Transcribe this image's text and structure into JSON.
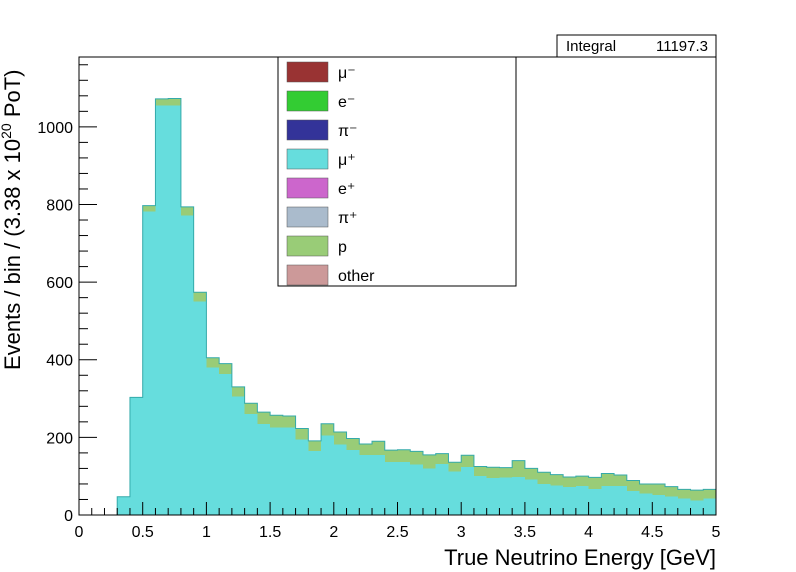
{
  "chart_data": {
    "type": "bar",
    "stacked": true,
    "xlabel": "True Neutrino Energy [GeV]",
    "ylabel": "Events / bin / (3.38 x 10^20 PoT)",
    "ylabel_parts": {
      "main": "Events / bin / (3.38 x 10",
      "exp": "20",
      "tail": " PoT)"
    },
    "xlim": [
      0,
      5
    ],
    "ylim": [
      0,
      1180
    ],
    "x_ticks": [
      0,
      0.5,
      1,
      1.5,
      2,
      2.5,
      3,
      3.5,
      4,
      4.5,
      5
    ],
    "x_tick_labels": [
      "0",
      "0.5",
      "1",
      "1.5",
      "2",
      "2.5",
      "3",
      "3.5",
      "4",
      "4.5",
      "5"
    ],
    "y_ticks": [
      0,
      200,
      400,
      600,
      800,
      1000
    ],
    "y_tick_labels": [
      "0",
      "200",
      "400",
      "600",
      "800",
      "1000"
    ],
    "bin_width": 0.1,
    "bin_lows": [
      0.0,
      0.1,
      0.2,
      0.3,
      0.4,
      0.5,
      0.6,
      0.7,
      0.8,
      0.9,
      1.0,
      1.1,
      1.2,
      1.3,
      1.4,
      1.5,
      1.6,
      1.7,
      1.8,
      1.9,
      2.0,
      2.1,
      2.2,
      2.3,
      2.4,
      2.5,
      2.6,
      2.7,
      2.8,
      2.9,
      3.0,
      3.1,
      3.2,
      3.3,
      3.4,
      3.5,
      3.6,
      3.7,
      3.8,
      3.9,
      4.0,
      4.1,
      4.2,
      4.3,
      4.4,
      4.5,
      4.6,
      4.7,
      4.8,
      4.9
    ],
    "series": [
      {
        "name": "μ⁻",
        "color": "#993333",
        "values": [
          0,
          0,
          0,
          0,
          0,
          0,
          0,
          0,
          0,
          0,
          0,
          0,
          0,
          0,
          0,
          0,
          0,
          0,
          0,
          0,
          0,
          0,
          0,
          0,
          0,
          0,
          0,
          0,
          0,
          0,
          0,
          0,
          0,
          0,
          0,
          0,
          0,
          0,
          0,
          0,
          0,
          0,
          0,
          0,
          0,
          0,
          0,
          0,
          0,
          0
        ]
      },
      {
        "name": "e⁻",
        "color": "#33cc33",
        "values": [
          0,
          0,
          0,
          0,
          0,
          0,
          0,
          0,
          0,
          0,
          0,
          0,
          0,
          0,
          0,
          0,
          0,
          0,
          0,
          0,
          0,
          0,
          0,
          0,
          0,
          0,
          0,
          0,
          0,
          0,
          0,
          0,
          0,
          0,
          0,
          0,
          0,
          0,
          0,
          0,
          0,
          0,
          0,
          0,
          0,
          0,
          0,
          0,
          0,
          0
        ]
      },
      {
        "name": "π⁻",
        "color": "#333399",
        "values": [
          0,
          0,
          0,
          0,
          0,
          0,
          0,
          0,
          0,
          0,
          0,
          0,
          0,
          0,
          0,
          0,
          0,
          0,
          0,
          0,
          0,
          0,
          0,
          0,
          0,
          0,
          0,
          0,
          0,
          0,
          0,
          0,
          0,
          0,
          0,
          0,
          0,
          0,
          0,
          0,
          0,
          0,
          0,
          0,
          0,
          0,
          0,
          0,
          0,
          0
        ]
      },
      {
        "name": "μ⁺",
        "color": "#66dddd",
        "values": [
          0,
          0,
          0,
          47,
          303,
          782,
          1055,
          1055,
          772,
          550,
          380,
          363,
          305,
          260,
          235,
          225,
          225,
          195,
          165,
          205,
          182,
          167,
          155,
          155,
          137,
          136,
          130,
          120,
          132,
          112,
          124,
          100,
          95,
          97,
          98,
          92,
          80,
          76,
          72,
          75,
          67,
          75,
          75,
          62,
          55,
          52,
          48,
          43,
          38,
          42
        ]
      },
      {
        "name": "e⁺",
        "color": "#cc66cc",
        "values": [
          0,
          0,
          0,
          0,
          0,
          0,
          0,
          0,
          0,
          0,
          0,
          0,
          0,
          0,
          0,
          0,
          0,
          0,
          0,
          0,
          0,
          0,
          0,
          0,
          0,
          0,
          0,
          0,
          0,
          0,
          0,
          0,
          0,
          0,
          0,
          0,
          0,
          0,
          0,
          0,
          0,
          0,
          0,
          0,
          0,
          0,
          0,
          0,
          0,
          0
        ]
      },
      {
        "name": "π⁺",
        "color": "#aabbcc",
        "values": [
          0,
          0,
          0,
          0,
          0,
          0,
          0,
          0,
          0,
          0,
          0,
          0,
          0,
          0,
          0,
          0,
          0,
          0,
          0,
          0,
          0,
          0,
          0,
          0,
          0,
          0,
          0,
          0,
          0,
          0,
          0,
          0,
          0,
          0,
          0,
          0,
          0,
          0,
          0,
          0,
          0,
          0,
          0,
          0,
          0,
          0,
          0,
          0,
          0,
          0
        ]
      },
      {
        "name": "p",
        "color": "#99cc77",
        "values": [
          0,
          0,
          0,
          0,
          0,
          15,
          17,
          18,
          22,
          24,
          25,
          27,
          25,
          28,
          30,
          32,
          30,
          28,
          26,
          30,
          32,
          30,
          28,
          35,
          30,
          32,
          34,
          35,
          26,
          24,
          30,
          25,
          28,
          25,
          42,
          28,
          30,
          28,
          26,
          25,
          30,
          32,
          28,
          27,
          25,
          28,
          25,
          23,
          26,
          24
        ]
      },
      {
        "name": "other",
        "color": "#cc9999",
        "values": [
          0,
          0,
          0,
          0,
          0,
          0,
          0,
          0,
          0,
          0,
          0,
          0,
          0,
          0,
          0,
          0,
          0,
          0,
          0,
          0,
          0,
          0,
          0,
          0,
          0,
          0,
          0,
          0,
          0,
          0,
          0,
          0,
          0,
          0,
          0,
          0,
          0,
          0,
          0,
          0,
          0,
          0,
          0,
          0,
          0,
          0,
          0,
          0,
          0,
          0
        ]
      }
    ],
    "stats": {
      "label": "Integral",
      "value": "11197.3"
    }
  }
}
